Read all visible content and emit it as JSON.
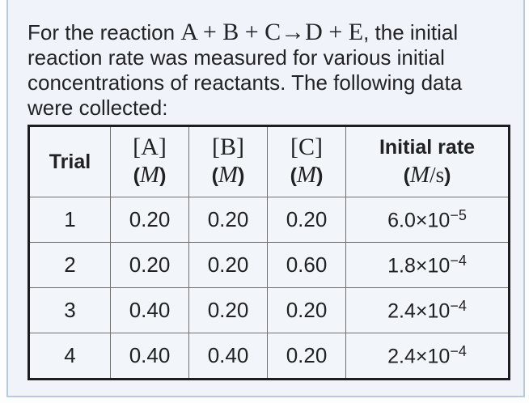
{
  "question": {
    "before": "For the reaction ",
    "reaction": "A + B + C→D + E",
    "after": ", the initial reaction rate was measured for various initial concentrations of reactants. The following data were collected:"
  },
  "table": {
    "header": {
      "trial": "Trial",
      "conc": [
        {
          "bracket": "[A]"
        },
        {
          "bracket": "[B]"
        },
        {
          "bracket": "[C]"
        }
      ],
      "unit": {
        "open": "(",
        "m": "M",
        "close": ")"
      },
      "rate_label": "Initial rate",
      "rate_unit": {
        "open": "(",
        "m": "M",
        "slash_s": "/s",
        "close": ")"
      }
    },
    "rows": [
      {
        "trial": "1",
        "a": "0.20",
        "b": "0.20",
        "c": "0.20",
        "rate_base": "6.0×10",
        "rate_exp": "−5"
      },
      {
        "trial": "2",
        "a": "0.20",
        "b": "0.20",
        "c": "0.60",
        "rate_base": "1.8×10",
        "rate_exp": "−4"
      },
      {
        "trial": "3",
        "a": "0.40",
        "b": "0.20",
        "c": "0.20",
        "rate_base": "2.4×10",
        "rate_exp": "−4"
      },
      {
        "trial": "4",
        "a": "0.40",
        "b": "0.40",
        "c": "0.20",
        "rate_base": "2.4×10",
        "rate_exp": "−4"
      }
    ]
  },
  "colors": {
    "panel_background": "#f0f4fa",
    "panel_border": "#b9cad9",
    "table_outer_border": "#1d1d1f",
    "table_inner_border": "#717171",
    "text": "#202122"
  }
}
